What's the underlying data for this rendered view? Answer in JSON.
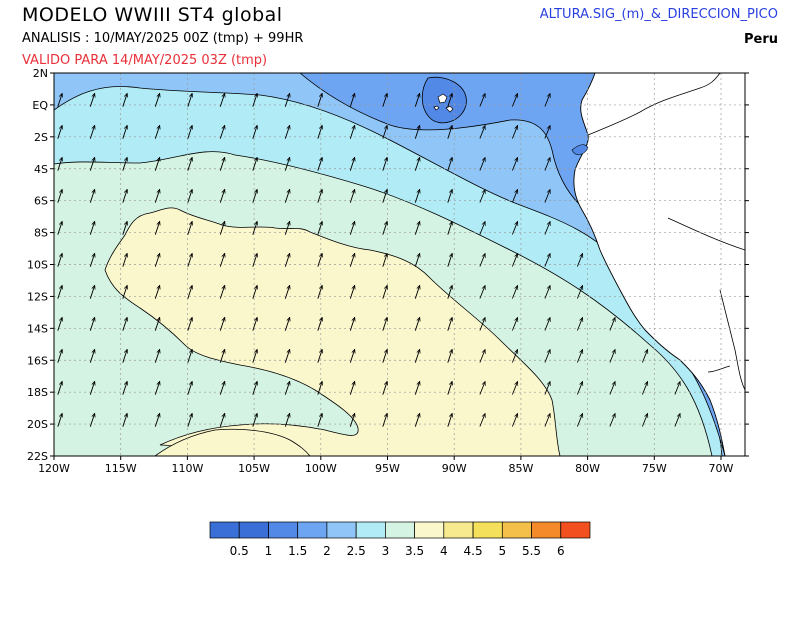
{
  "header": {
    "title": "MODELO WWIII ST4 global",
    "analysis": "ANALISIS : 10/MAY/2025 00Z  (tmp) + 99HR",
    "valid": "VALIDO PARA  14/MAY/2025 03Z  (tmp)",
    "parameter": "ALTURA.SIG_(m)_&_DIRECCION_PICO",
    "region": "Peru"
  },
  "axes": {
    "lat_labels": [
      "2N",
      "EQ",
      "2S",
      "4S",
      "6S",
      "8S",
      "10S",
      "12S",
      "14S",
      "16S",
      "18S",
      "20S",
      "22S"
    ],
    "lon_labels": [
      "120W",
      "115W",
      "110W",
      "105W",
      "100W",
      "95W",
      "90W",
      "85W",
      "80W",
      "75W",
      "70W"
    ]
  },
  "legend": {
    "labels": [
      "0.5",
      "1",
      "1.5",
      "2",
      "2.5",
      "3",
      "3.5",
      "4",
      "4.5",
      "5",
      "5.5",
      "6"
    ],
    "colors": [
      "#3a6fd8",
      "#5289e6",
      "#6ea5f2",
      "#8fc6f7",
      "#b1ebf6",
      "#d4f3e2",
      "#fbf7cd",
      "#f7e98e",
      "#f5e05c",
      "#f4c04a",
      "#f58a2a",
      "#f2501e"
    ]
  },
  "map_colors": {
    "ocean_1_5": "#6ea5f2",
    "ocean_2": "#8fc6f7",
    "ocean_2_5": "#b1ebf6",
    "ocean_3": "#d4f3e2",
    "ocean_3_5": "#fbf7cd",
    "land": "#ffffff"
  }
}
